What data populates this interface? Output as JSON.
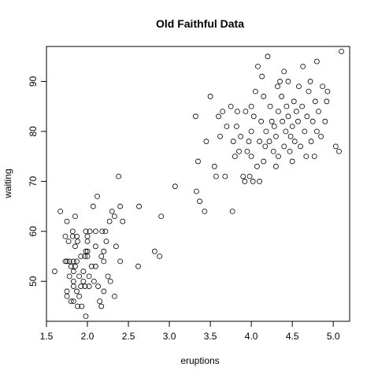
{
  "chart_data": {
    "type": "scatter",
    "title": "Old Faithful Data",
    "xlabel": "eruptions",
    "ylabel": "waiting",
    "xlim": [
      1.5,
      5.2
    ],
    "ylim": [
      42,
      97
    ],
    "x_ticks": [
      1.5,
      2.0,
      2.5,
      3.0,
      3.5,
      4.0,
      4.5,
      5.0
    ],
    "x_tick_labels": [
      "1.5",
      "2.0",
      "2.5",
      "3.0",
      "3.5",
      "4.0",
      "4.5",
      "5.0"
    ],
    "y_ticks": [
      50,
      60,
      70,
      80,
      90
    ],
    "y_tick_labels": [
      "50",
      "60",
      "70",
      "80",
      "90"
    ],
    "grid": false,
    "legend": "none",
    "marker": "open-circle",
    "series": [
      {
        "points": [
          [
            1.6,
            52
          ],
          [
            1.67,
            64
          ],
          [
            1.73,
            59
          ],
          [
            1.73,
            54
          ],
          [
            1.75,
            62
          ],
          [
            1.75,
            54
          ],
          [
            1.75,
            48
          ],
          [
            1.75,
            47
          ],
          [
            1.77,
            58
          ],
          [
            1.78,
            54
          ],
          [
            1.78,
            51
          ],
          [
            1.8,
            53
          ],
          [
            1.8,
            46
          ],
          [
            1.82,
            60
          ],
          [
            1.82,
            59
          ],
          [
            1.83,
            54
          ],
          [
            1.83,
            52
          ],
          [
            1.83,
            50
          ],
          [
            1.83,
            49
          ],
          [
            1.83,
            46
          ],
          [
            1.85,
            63
          ],
          [
            1.85,
            57
          ],
          [
            1.85,
            53
          ],
          [
            1.87,
            59
          ],
          [
            1.87,
            54
          ],
          [
            1.87,
            48
          ],
          [
            1.88,
            45
          ],
          [
            1.88,
            58
          ],
          [
            1.9,
            51
          ],
          [
            1.9,
            47
          ],
          [
            1.92,
            55
          ],
          [
            1.92,
            49
          ],
          [
            1.93,
            45
          ],
          [
            1.95,
            52
          ],
          [
            1.95,
            50
          ],
          [
            1.97,
            55
          ],
          [
            1.97,
            49
          ],
          [
            1.98,
            60
          ],
          [
            1.98,
            56
          ],
          [
            1.98,
            43
          ],
          [
            2.0,
            59
          ],
          [
            2.0,
            58
          ],
          [
            2.0,
            56
          ],
          [
            2.0,
            55
          ],
          [
            2.02,
            51
          ],
          [
            2.02,
            49
          ],
          [
            2.03,
            60
          ],
          [
            2.05,
            53
          ],
          [
            2.07,
            65
          ],
          [
            2.08,
            50
          ],
          [
            2.1,
            60
          ],
          [
            2.1,
            57
          ],
          [
            2.1,
            53
          ],
          [
            2.12,
            67
          ],
          [
            2.13,
            49
          ],
          [
            2.15,
            46
          ],
          [
            2.17,
            55
          ],
          [
            2.17,
            45
          ],
          [
            2.18,
            60
          ],
          [
            2.2,
            56
          ],
          [
            2.2,
            54
          ],
          [
            2.2,
            48
          ],
          [
            2.22,
            60
          ],
          [
            2.23,
            58
          ],
          [
            2.25,
            51
          ],
          [
            2.27,
            62
          ],
          [
            2.28,
            50
          ],
          [
            2.3,
            64
          ],
          [
            2.33,
            63
          ],
          [
            2.33,
            47
          ],
          [
            2.35,
            57
          ],
          [
            2.38,
            71
          ],
          [
            2.4,
            65
          ],
          [
            2.4,
            54
          ],
          [
            2.43,
            62
          ],
          [
            2.62,
            53
          ],
          [
            2.63,
            65
          ],
          [
            2.82,
            56
          ],
          [
            2.88,
            55
          ],
          [
            2.9,
            63
          ],
          [
            3.07,
            69
          ],
          [
            3.32,
            83
          ],
          [
            3.33,
            68
          ],
          [
            3.35,
            74
          ],
          [
            3.37,
            66
          ],
          [
            3.43,
            64
          ],
          [
            3.45,
            78
          ],
          [
            3.5,
            87
          ],
          [
            3.55,
            73
          ],
          [
            3.57,
            71
          ],
          [
            3.6,
            83
          ],
          [
            3.62,
            79
          ],
          [
            3.65,
            84
          ],
          [
            3.68,
            71
          ],
          [
            3.7,
            81
          ],
          [
            3.75,
            85
          ],
          [
            3.77,
            64
          ],
          [
            3.78,
            78
          ],
          [
            3.8,
            75
          ],
          [
            3.82,
            81
          ],
          [
            3.83,
            84
          ],
          [
            3.85,
            76
          ],
          [
            3.87,
            79
          ],
          [
            3.9,
            71
          ],
          [
            3.92,
            70
          ],
          [
            3.93,
            84
          ],
          [
            3.95,
            76
          ],
          [
            3.97,
            78
          ],
          [
            3.98,
            71
          ],
          [
            4.0,
            85
          ],
          [
            4.0,
            80
          ],
          [
            4.0,
            75
          ],
          [
            4.02,
            70
          ],
          [
            4.03,
            83
          ],
          [
            4.05,
            88
          ],
          [
            4.07,
            73
          ],
          [
            4.08,
            93
          ],
          [
            4.1,
            78
          ],
          [
            4.1,
            70
          ],
          [
            4.12,
            82
          ],
          [
            4.13,
            91
          ],
          [
            4.15,
            87
          ],
          [
            4.15,
            74
          ],
          [
            4.17,
            77
          ],
          [
            4.18,
            80
          ],
          [
            4.2,
            95
          ],
          [
            4.22,
            78
          ],
          [
            4.23,
            85
          ],
          [
            4.25,
            82
          ],
          [
            4.27,
            76
          ],
          [
            4.28,
            81
          ],
          [
            4.3,
            73
          ],
          [
            4.3,
            79
          ],
          [
            4.32,
            89
          ],
          [
            4.33,
            84
          ],
          [
            4.33,
            75
          ],
          [
            4.35,
            90
          ],
          [
            4.37,
            87
          ],
          [
            4.38,
            82
          ],
          [
            4.4,
            92
          ],
          [
            4.4,
            77
          ],
          [
            4.42,
            80
          ],
          [
            4.43,
            85
          ],
          [
            4.45,
            90
          ],
          [
            4.45,
            83
          ],
          [
            4.47,
            76
          ],
          [
            4.48,
            79
          ],
          [
            4.5,
            81
          ],
          [
            4.5,
            74
          ],
          [
            4.52,
            86
          ],
          [
            4.53,
            78
          ],
          [
            4.55,
            84
          ],
          [
            4.57,
            82
          ],
          [
            4.58,
            89
          ],
          [
            4.6,
            77
          ],
          [
            4.62,
            85
          ],
          [
            4.63,
            93
          ],
          [
            4.65,
            80
          ],
          [
            4.67,
            75
          ],
          [
            4.68,
            83
          ],
          [
            4.7,
            88
          ],
          [
            4.72,
            90
          ],
          [
            4.73,
            78
          ],
          [
            4.75,
            82
          ],
          [
            4.77,
            75
          ],
          [
            4.78,
            86
          ],
          [
            4.8,
            80
          ],
          [
            4.8,
            94
          ],
          [
            4.82,
            84
          ],
          [
            4.85,
            79
          ],
          [
            4.87,
            89
          ],
          [
            4.9,
            82
          ],
          [
            4.92,
            86
          ],
          [
            4.93,
            88
          ],
          [
            5.03,
            77
          ],
          [
            5.07,
            76
          ],
          [
            5.1,
            96
          ]
        ]
      }
    ]
  }
}
